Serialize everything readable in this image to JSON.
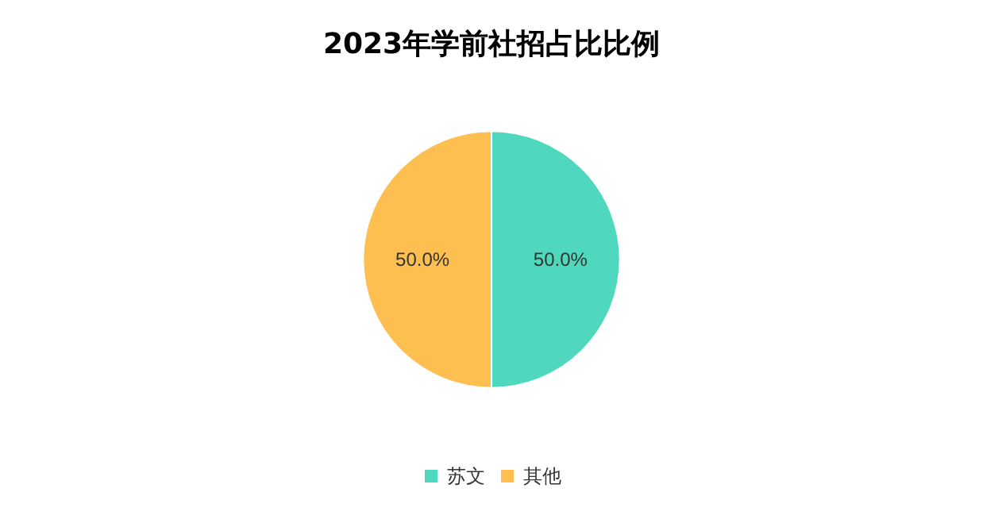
{
  "chart_data": {
    "type": "pie",
    "title": "2023年学前社招占比比例",
    "categories": [
      "苏文",
      "其他"
    ],
    "values": [
      50,
      50
    ],
    "colors": [
      "#4fd8bd",
      "#fdbf50"
    ],
    "value_labels": [
      "50.0%",
      "50.0%"
    ],
    "legend": "bottom"
  }
}
